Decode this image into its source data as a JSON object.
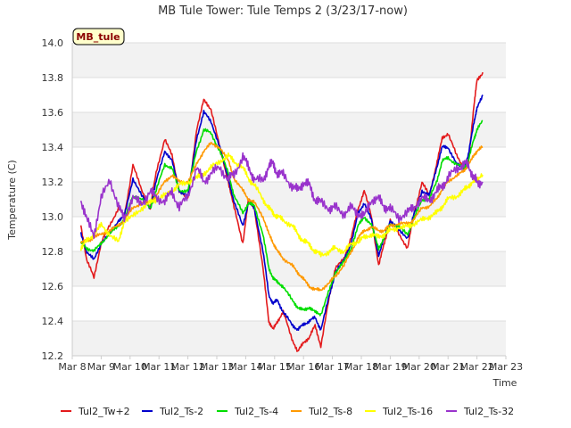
{
  "chart_data": {
    "type": "line",
    "title": "MB Tule Tower: Tule Temps 2 (3/23/17-now)",
    "xlabel": "Time",
    "ylabel": "Temperature (C)",
    "badge": "MB_tule",
    "xlim": [
      8,
      23
    ],
    "ylim": [
      12.2,
      14.0
    ],
    "y_ticks": [
      12.2,
      12.4,
      12.6,
      12.8,
      13.0,
      13.2,
      13.4,
      13.6,
      13.8,
      14.0
    ],
    "y_tick_labels": [
      "12.2",
      "12.4",
      "12.6",
      "12.8",
      "13.0",
      "13.2",
      "13.4",
      "13.6",
      "13.8",
      "14.0"
    ],
    "x_ticks": [
      8,
      9,
      10,
      11,
      12,
      13,
      14,
      15,
      16,
      17,
      18,
      19,
      20,
      21,
      22,
      23
    ],
    "x_tick_labels": [
      "Mar 8",
      "Mar 9",
      "Mar 10",
      "Mar 11",
      "Mar 12",
      "Mar 13",
      "Mar 14",
      "Mar 15",
      "Mar 16",
      "Mar 17",
      "Mar 18",
      "Mar 19",
      "Mar 20",
      "Mar 21",
      "Mar 22",
      "Mar 23"
    ],
    "grid": true,
    "legend_position": "bottom",
    "series": [
      {
        "name": "Tul2_Tw+2",
        "color": "#e31a1c",
        "x": [
          8.3,
          8.5,
          8.75,
          9.0,
          9.3,
          9.6,
          9.8,
          10.1,
          10.4,
          10.7,
          10.9,
          11.2,
          11.45,
          11.7,
          12.0,
          12.3,
          12.55,
          12.8,
          13.1,
          13.4,
          13.6,
          13.9,
          14.1,
          14.3,
          14.6,
          14.8,
          14.95,
          15.1,
          15.3,
          15.6,
          15.8,
          16.0,
          16.2,
          16.4,
          16.6,
          16.9,
          17.1,
          17.4,
          17.65,
          17.9,
          18.1,
          18.35,
          18.6,
          18.8,
          19.0,
          19.3,
          19.6,
          19.8,
          20.1,
          20.35,
          20.6,
          20.8,
          21.0,
          21.3,
          21.55,
          21.7,
          21.9,
          22.0,
          22.2
        ],
        "values": [
          12.95,
          12.75,
          12.65,
          12.85,
          12.95,
          13.05,
          13.0,
          13.3,
          13.15,
          13.05,
          13.25,
          13.45,
          13.35,
          13.15,
          13.1,
          13.5,
          13.67,
          13.62,
          13.4,
          13.2,
          13.05,
          12.85,
          13.1,
          13.05,
          12.7,
          12.4,
          12.35,
          12.4,
          12.45,
          12.3,
          12.22,
          12.28,
          12.3,
          12.38,
          12.25,
          12.55,
          12.7,
          12.76,
          12.88,
          13.05,
          13.15,
          13.0,
          12.72,
          12.85,
          12.98,
          12.9,
          12.82,
          13.0,
          13.2,
          13.12,
          13.3,
          13.45,
          13.48,
          13.35,
          13.28,
          13.3,
          13.65,
          13.78,
          13.83
        ]
      },
      {
        "name": "Tul2_Ts-2",
        "color": "#0000cc",
        "x": [
          8.3,
          8.5,
          8.75,
          9.0,
          9.3,
          9.6,
          9.8,
          10.1,
          10.4,
          10.7,
          10.9,
          11.2,
          11.45,
          11.7,
          12.0,
          12.3,
          12.55,
          12.8,
          13.1,
          13.4,
          13.6,
          13.9,
          14.1,
          14.3,
          14.6,
          14.8,
          14.95,
          15.1,
          15.3,
          15.6,
          15.8,
          16.0,
          16.2,
          16.4,
          16.6,
          16.9,
          17.1,
          17.4,
          17.65,
          17.9,
          18.1,
          18.35,
          18.6,
          18.8,
          19.0,
          19.3,
          19.6,
          19.8,
          20.1,
          20.35,
          20.6,
          20.8,
          21.0,
          21.3,
          21.55,
          21.7,
          21.9,
          22.0,
          22.2
        ],
        "values": [
          12.9,
          12.8,
          12.75,
          12.85,
          12.9,
          12.98,
          13.0,
          13.22,
          13.12,
          13.05,
          13.2,
          13.38,
          13.32,
          13.15,
          13.12,
          13.45,
          13.6,
          13.55,
          13.4,
          13.22,
          13.08,
          12.95,
          13.08,
          13.05,
          12.8,
          12.55,
          12.5,
          12.52,
          12.45,
          12.38,
          12.35,
          12.38,
          12.4,
          12.42,
          12.35,
          12.55,
          12.68,
          12.75,
          12.85,
          13.02,
          13.08,
          12.98,
          12.78,
          12.88,
          12.98,
          12.92,
          12.88,
          13.0,
          13.15,
          13.12,
          13.28,
          13.4,
          13.4,
          13.3,
          13.28,
          13.35,
          13.55,
          13.62,
          13.7
        ]
      },
      {
        "name": "Tul2_Ts-4",
        "color": "#00dd00",
        "x": [
          8.3,
          8.5,
          8.75,
          9.0,
          9.3,
          9.6,
          9.8,
          10.1,
          10.4,
          10.7,
          10.9,
          11.2,
          11.45,
          11.7,
          12.0,
          12.3,
          12.55,
          12.8,
          13.1,
          13.4,
          13.6,
          13.9,
          14.1,
          14.3,
          14.6,
          14.8,
          14.95,
          15.1,
          15.3,
          15.6,
          15.8,
          16.0,
          16.2,
          16.4,
          16.6,
          16.9,
          17.1,
          17.4,
          17.65,
          17.9,
          18.1,
          18.35,
          18.6,
          18.8,
          19.0,
          19.3,
          19.6,
          19.8,
          20.1,
          20.35,
          20.6,
          20.8,
          21.0,
          21.3,
          21.55,
          21.7,
          21.9,
          22.0,
          22.2
        ],
        "values": [
          12.85,
          12.82,
          12.8,
          12.85,
          12.9,
          12.95,
          12.98,
          13.12,
          13.1,
          13.05,
          13.15,
          13.3,
          13.28,
          13.15,
          13.15,
          13.38,
          13.5,
          13.48,
          13.38,
          13.25,
          13.12,
          13.02,
          13.08,
          13.06,
          12.9,
          12.7,
          12.65,
          12.62,
          12.6,
          12.52,
          12.48,
          12.46,
          12.48,
          12.45,
          12.44,
          12.58,
          12.68,
          12.74,
          12.82,
          12.95,
          13.0,
          12.95,
          12.82,
          12.88,
          12.96,
          12.94,
          12.9,
          12.98,
          13.1,
          13.1,
          13.2,
          13.32,
          13.34,
          13.3,
          13.28,
          13.32,
          13.45,
          13.5,
          13.55
        ]
      },
      {
        "name": "Tul2_Ts-8",
        "color": "#ff9900",
        "x": [
          8.3,
          8.5,
          8.75,
          9.0,
          9.3,
          9.6,
          9.8,
          10.1,
          10.4,
          10.7,
          10.9,
          11.2,
          11.45,
          11.7,
          12.0,
          12.3,
          12.55,
          12.8,
          13.1,
          13.4,
          13.6,
          13.9,
          14.1,
          14.3,
          14.6,
          14.8,
          14.95,
          15.1,
          15.3,
          15.6,
          15.8,
          16.0,
          16.2,
          16.4,
          16.6,
          16.9,
          17.1,
          17.4,
          17.65,
          17.9,
          18.1,
          18.35,
          18.6,
          18.8,
          19.0,
          19.3,
          19.6,
          19.8,
          20.1,
          20.35,
          20.6,
          20.8,
          21.0,
          21.3,
          21.55,
          21.7,
          21.9,
          22.0,
          22.2
        ],
        "values": [
          12.85,
          12.86,
          12.88,
          12.9,
          12.92,
          12.95,
          12.98,
          13.05,
          13.08,
          13.08,
          13.12,
          13.2,
          13.24,
          13.2,
          13.2,
          13.3,
          13.38,
          13.42,
          13.4,
          13.32,
          13.22,
          13.15,
          13.1,
          13.08,
          13.0,
          12.9,
          12.85,
          12.8,
          12.76,
          12.72,
          12.68,
          12.64,
          12.6,
          12.58,
          12.58,
          12.62,
          12.66,
          12.72,
          12.8,
          12.88,
          12.92,
          12.94,
          12.92,
          12.92,
          12.95,
          12.96,
          12.96,
          12.98,
          13.05,
          13.06,
          13.1,
          13.16,
          13.2,
          13.24,
          13.26,
          13.3,
          13.35,
          13.38,
          13.4
        ]
      },
      {
        "name": "Tul2_Ts-16",
        "color": "#ffff00",
        "x": [
          8.3,
          8.5,
          8.75,
          9.0,
          9.3,
          9.6,
          9.8,
          10.1,
          10.4,
          10.7,
          10.9,
          11.2,
          11.45,
          11.7,
          12.0,
          12.3,
          12.55,
          12.8,
          13.1,
          13.4,
          13.6,
          13.9,
          14.1,
          14.3,
          14.6,
          14.8,
          14.95,
          15.1,
          15.3,
          15.6,
          15.8,
          16.0,
          16.2,
          16.4,
          16.6,
          16.9,
          17.1,
          17.4,
          17.65,
          17.9,
          18.1,
          18.35,
          18.6,
          18.8,
          19.0,
          19.3,
          19.6,
          19.8,
          20.1,
          20.35,
          20.6,
          20.8,
          21.0,
          21.3,
          21.55,
          21.7,
          21.9,
          22.0,
          22.2
        ],
        "values": [
          12.82,
          12.86,
          12.9,
          12.95,
          12.9,
          12.85,
          12.98,
          13.0,
          13.05,
          13.08,
          13.1,
          13.12,
          13.15,
          13.18,
          13.2,
          13.22,
          13.25,
          13.28,
          13.32,
          13.35,
          13.32,
          13.28,
          13.22,
          13.18,
          13.1,
          13.05,
          13.02,
          13.0,
          12.98,
          12.95,
          12.9,
          12.86,
          12.84,
          12.8,
          12.78,
          12.8,
          12.82,
          12.8,
          12.84,
          12.86,
          12.88,
          12.9,
          12.88,
          12.9,
          12.92,
          12.94,
          12.94,
          12.96,
          12.98,
          13.0,
          13.02,
          13.06,
          13.1,
          13.12,
          13.15,
          13.18,
          13.2,
          13.22,
          13.24
        ]
      },
      {
        "name": "Tul2_Ts-32",
        "color": "#9933cc",
        "x": [
          8.3,
          8.5,
          8.75,
          9.0,
          9.3,
          9.6,
          9.8,
          10.1,
          10.4,
          10.7,
          10.9,
          11.2,
          11.45,
          11.7,
          12.0,
          12.3,
          12.55,
          12.8,
          13.1,
          13.4,
          13.6,
          13.9,
          14.1,
          14.3,
          14.6,
          14.8,
          14.95,
          15.1,
          15.3,
          15.6,
          15.8,
          16.0,
          16.2,
          16.4,
          16.6,
          16.9,
          17.1,
          17.4,
          17.65,
          17.9,
          18.1,
          18.35,
          18.6,
          18.8,
          19.0,
          19.3,
          19.6,
          19.8,
          20.1,
          20.35,
          20.6,
          20.8,
          21.0,
          21.3,
          21.55,
          21.7,
          21.9,
          22.0,
          22.2
        ],
        "values": [
          13.1,
          12.98,
          12.9,
          13.1,
          13.22,
          13.05,
          13.0,
          13.1,
          13.08,
          13.14,
          13.12,
          13.08,
          13.15,
          13.05,
          13.12,
          13.28,
          13.2,
          13.25,
          13.28,
          13.22,
          13.24,
          13.35,
          13.28,
          13.22,
          13.2,
          13.3,
          13.3,
          13.25,
          13.24,
          13.18,
          13.15,
          13.2,
          13.18,
          13.1,
          13.08,
          13.05,
          13.05,
          13.02,
          13.05,
          13.02,
          13.0,
          13.1,
          13.1,
          13.06,
          13.04,
          13.0,
          13.02,
          13.06,
          13.1,
          13.1,
          13.14,
          13.18,
          13.22,
          13.28,
          13.3,
          13.3,
          13.22,
          13.2,
          13.2
        ]
      }
    ]
  }
}
